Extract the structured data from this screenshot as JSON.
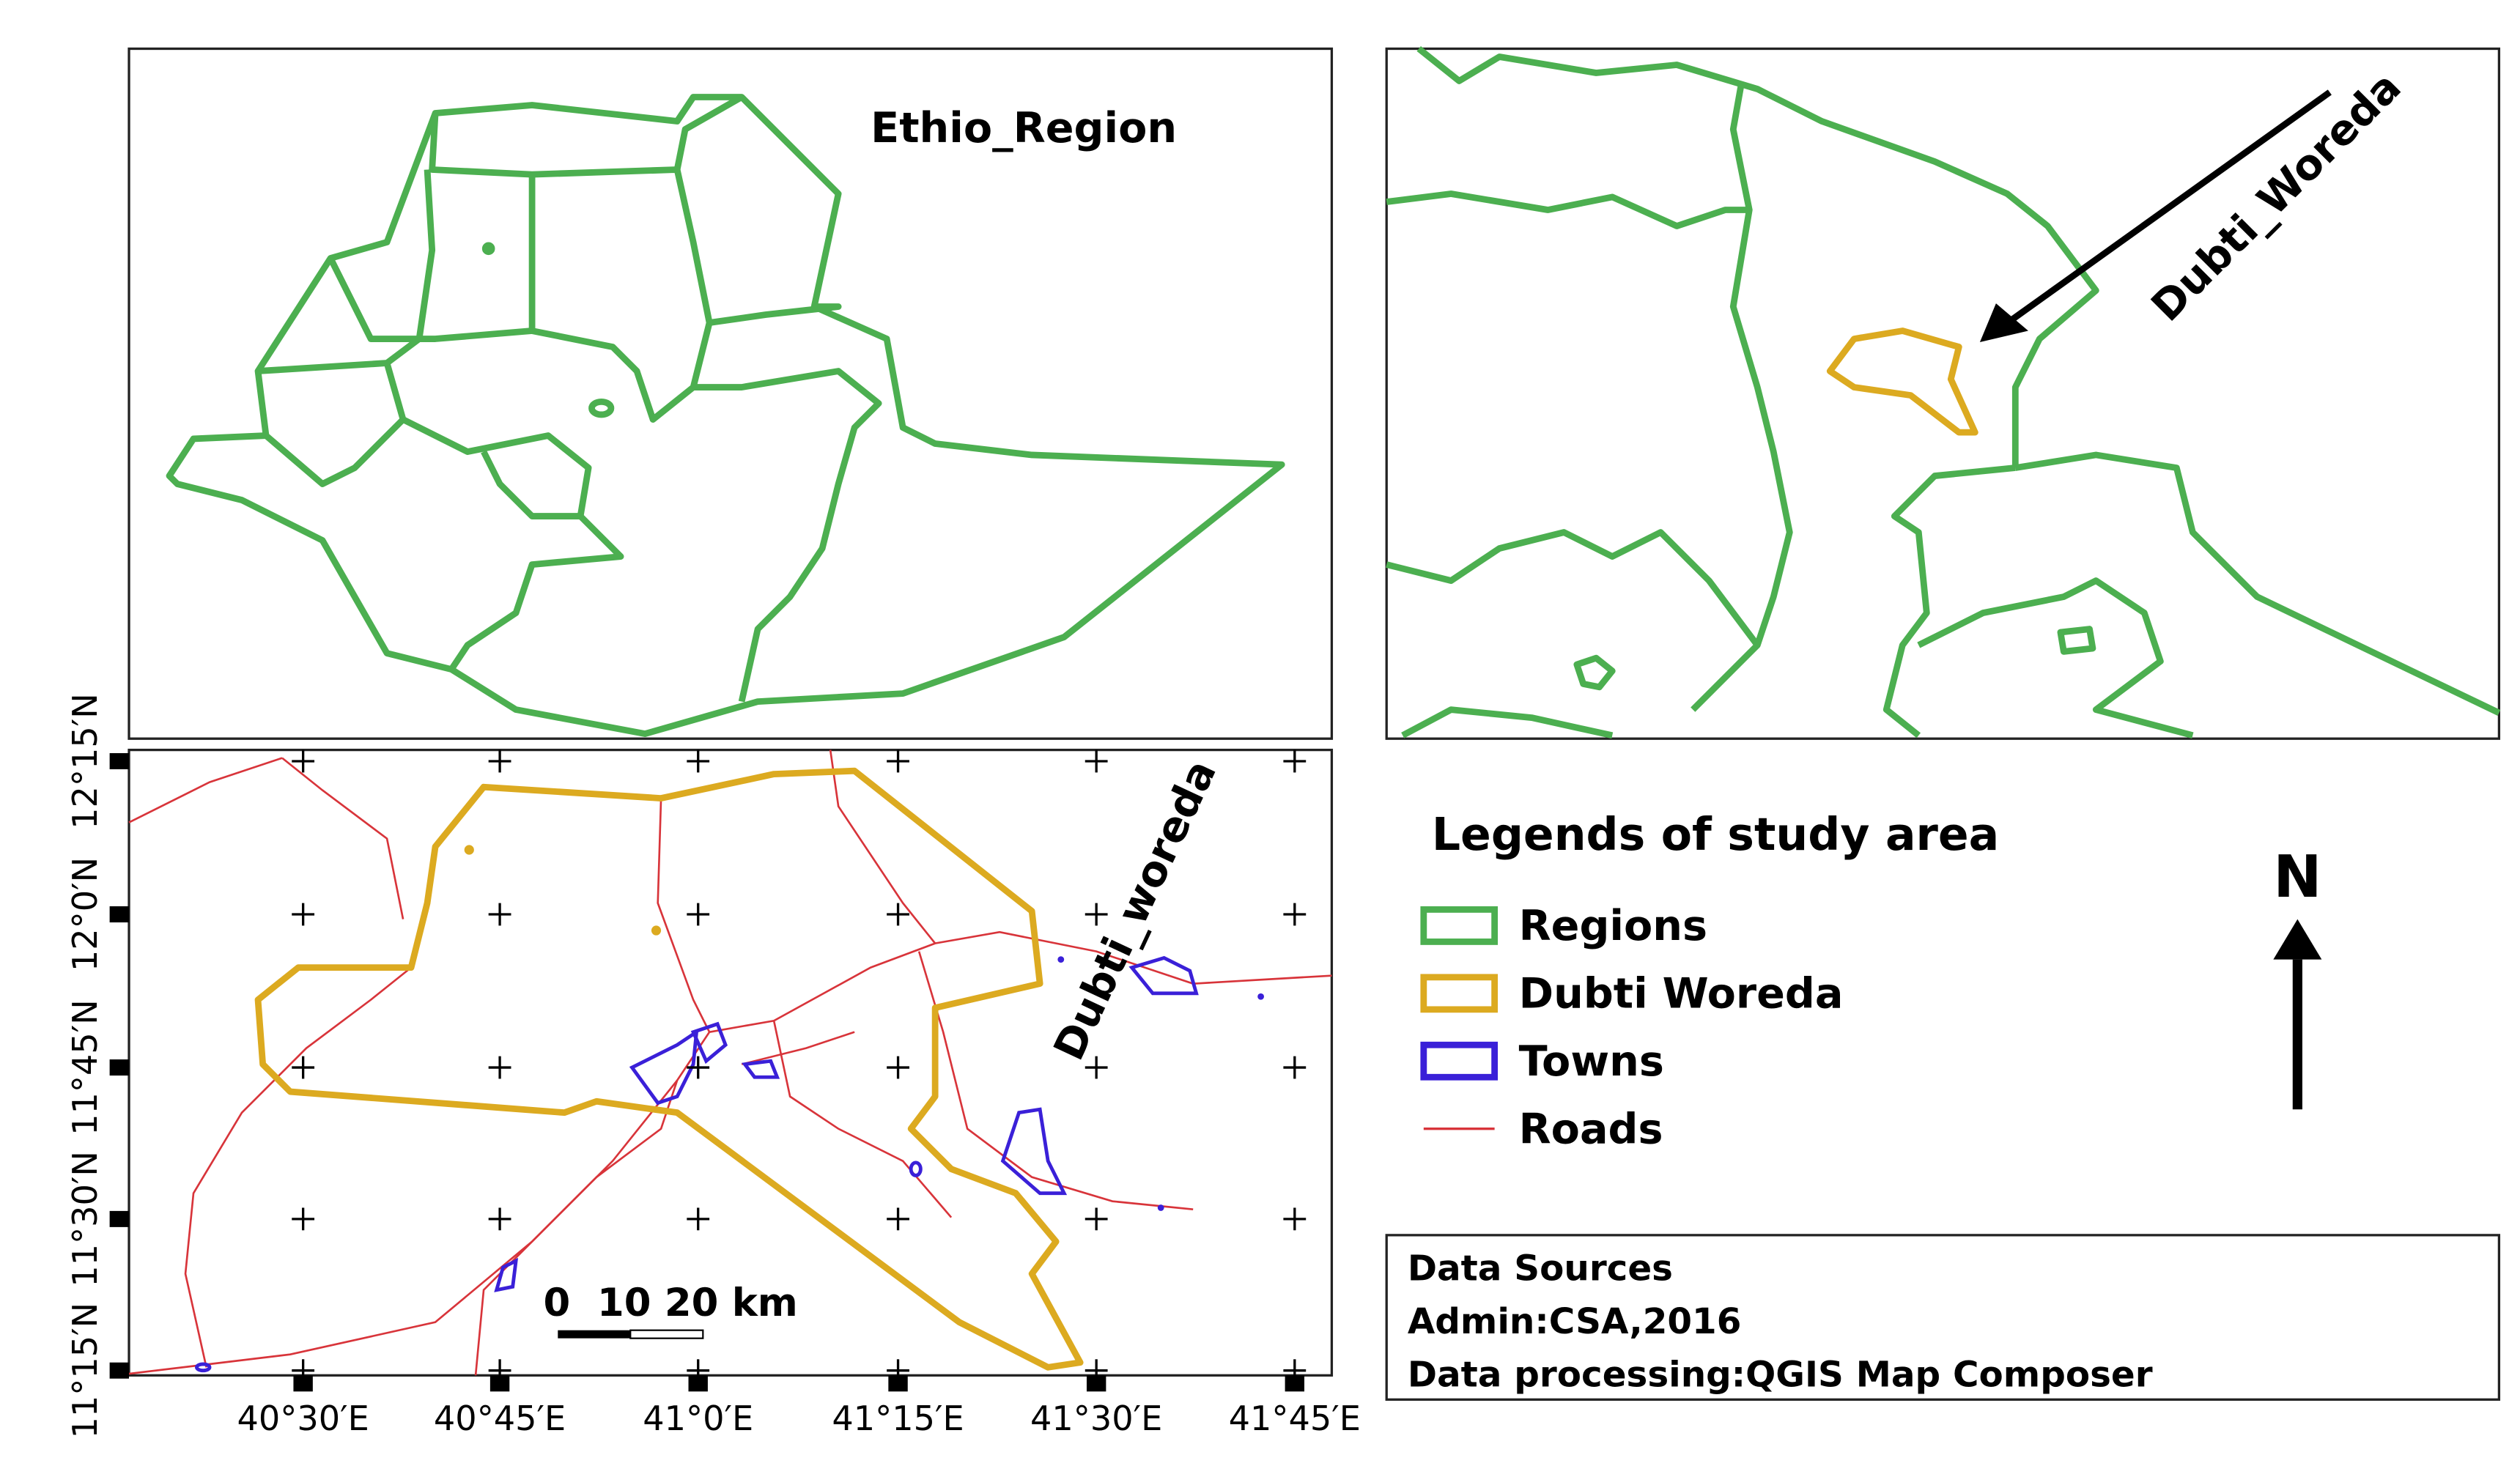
{
  "overview_map": {
    "label": "Ethio_Region"
  },
  "inset_map": {
    "label": "Dubti_Woreda"
  },
  "main_map": {
    "label": "Dubti_woreda",
    "lat_labels": [
      "11°15′N",
      "11°30′N",
      "11°45′N",
      "12°0′N",
      "12°15′N"
    ],
    "lon_labels": [
      "40°30′E",
      "40°45′E",
      "41°0′E",
      "41°15′E",
      "41°30′E",
      "41°45′E"
    ],
    "scale_bar": "0  10 20 km"
  },
  "legend": {
    "title": "Legends of study area",
    "items": [
      "Regions",
      "Dubti Woreda",
      "Towns",
      "Roads"
    ]
  },
  "north_arrow": "N",
  "data_sources": [
    "Data Sources",
    "Admin:CSA,2016",
    "Data processing:QGIS Map Composer"
  ]
}
